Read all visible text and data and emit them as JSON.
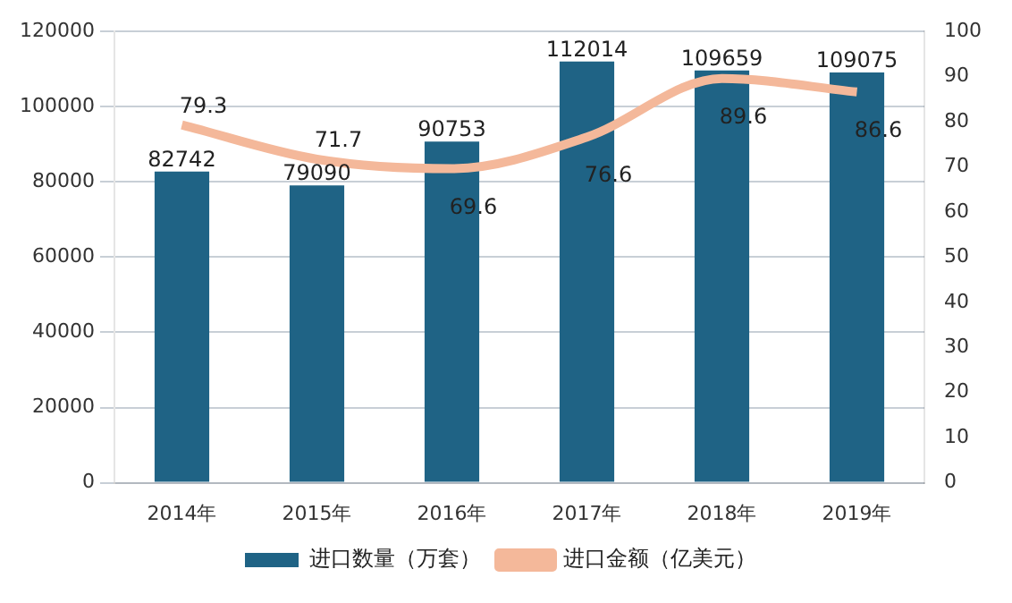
{
  "chart_data": {
    "type": "bar",
    "categories": [
      "2014年",
      "2015年",
      "2016年",
      "2017年",
      "2018年",
      "2019年"
    ],
    "series": [
      {
        "name": "进口数量（万套）",
        "color": "#1f6385",
        "values": [
          82742,
          79090,
          90753,
          112014,
          109659,
          109075
        ]
      },
      {
        "name": "进口金额（亿美元）",
        "type": "line",
        "axis": "y2",
        "color": "#f4b89a",
        "values": [
          79.3,
          71.7,
          69.6,
          76.6,
          89.6,
          86.6
        ]
      }
    ],
    "ylim": [
      0,
      120000
    ],
    "yticks": [
      0,
      20000,
      40000,
      60000,
      80000,
      100000,
      120000
    ],
    "y2lim": [
      0,
      100
    ],
    "y2ticks": [
      0,
      10,
      20,
      30,
      40,
      50,
      60,
      70,
      80,
      90,
      100
    ],
    "grid": "y",
    "legend": "bottom",
    "data_labels": true,
    "marker": "none"
  }
}
